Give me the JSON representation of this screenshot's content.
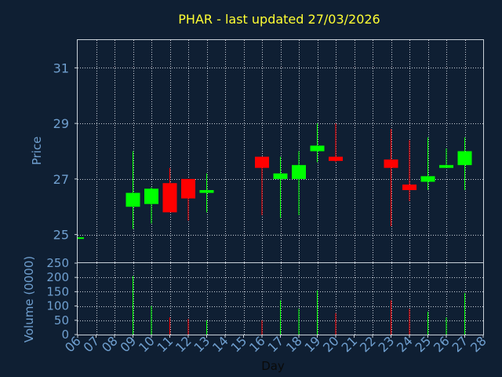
{
  "chart_data": {
    "type": "candlestick",
    "title": "PHAR - last updated 27/03/2026",
    "price_panel": {
      "ylabel": "Price",
      "ylim": [
        24.0,
        32.0
      ],
      "yticks": [
        25,
        27,
        29,
        31
      ]
    },
    "volume_panel": {
      "ylabel": "Volume (0000)",
      "ylim": [
        0,
        250
      ],
      "yticks": [
        0,
        50,
        100,
        150,
        200,
        250
      ]
    },
    "xlabel": "Day",
    "x_categories": [
      "06",
      "07",
      "08",
      "09",
      "10",
      "11",
      "12",
      "13",
      "14",
      "15",
      "16",
      "17",
      "18",
      "19",
      "20",
      "21",
      "22",
      "23",
      "24",
      "25",
      "26",
      "27",
      "28"
    ],
    "up_color": "#00ff00",
    "down_color": "#ff0000",
    "candles": [
      {
        "day": "06",
        "open": 24.85,
        "high": 24.9,
        "low": 24.85,
        "close": 24.9,
        "volume": 0
      },
      {
        "day": "09",
        "open": 26.0,
        "high": 28.0,
        "low": 25.2,
        "close": 26.5,
        "volume": 205
      },
      {
        "day": "10",
        "open": 26.1,
        "high": 26.7,
        "low": 25.4,
        "close": 26.65,
        "volume": 100
      },
      {
        "day": "11",
        "open": 26.85,
        "high": 27.4,
        "low": 25.8,
        "close": 25.8,
        "volume": 60
      },
      {
        "day": "12",
        "open": 27.0,
        "high": 27.0,
        "low": 25.5,
        "close": 26.3,
        "volume": 55
      },
      {
        "day": "13",
        "open": 26.5,
        "high": 27.2,
        "low": 25.8,
        "close": 26.6,
        "volume": 50
      },
      {
        "day": "16",
        "open": 27.8,
        "high": 27.8,
        "low": 25.7,
        "close": 27.4,
        "volume": 50
      },
      {
        "day": "17",
        "open": 27.0,
        "high": 27.8,
        "low": 25.6,
        "close": 27.2,
        "volume": 120
      },
      {
        "day": "18",
        "open": 27.0,
        "high": 28.0,
        "low": 25.7,
        "close": 27.5,
        "volume": 90
      },
      {
        "day": "19",
        "open": 28.0,
        "high": 29.0,
        "low": 27.6,
        "close": 28.2,
        "volume": 155
      },
      {
        "day": "20",
        "open": 27.8,
        "high": 29.0,
        "low": 27.6,
        "close": 27.65,
        "volume": 75
      },
      {
        "day": "23",
        "open": 27.7,
        "high": 28.8,
        "low": 25.3,
        "close": 27.4,
        "volume": 120
      },
      {
        "day": "24",
        "open": 26.8,
        "high": 28.4,
        "low": 26.2,
        "close": 26.6,
        "volume": 90
      },
      {
        "day": "25",
        "open": 26.9,
        "high": 28.5,
        "low": 26.6,
        "close": 27.1,
        "volume": 80
      },
      {
        "day": "26",
        "open": 27.4,
        "high": 28.1,
        "low": 27.4,
        "close": 27.5,
        "volume": 60
      },
      {
        "day": "27",
        "open": 27.5,
        "high": 28.5,
        "low": 26.6,
        "close": 28.0,
        "volume": 145
      }
    ]
  }
}
